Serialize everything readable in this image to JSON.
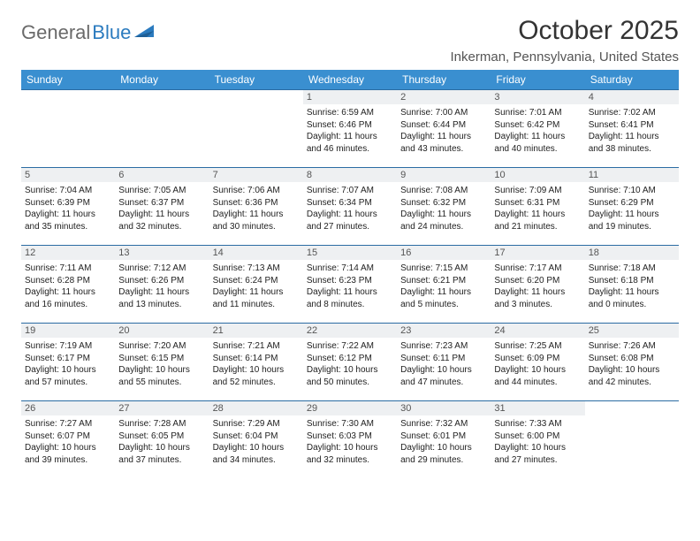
{
  "logo": {
    "text1": "General",
    "text2": "Blue",
    "color1": "#6a6a6a",
    "color2": "#2b7bbf"
  },
  "title": "October 2025",
  "location": "Inkerman, Pennsylvania, United States",
  "colors": {
    "header_bg": "#3a8fd0",
    "header_text": "#ffffff",
    "cell_border": "#2b6ca3",
    "daynum_bg": "#eef0f2",
    "daynum_text": "#555555",
    "body_text": "#222222",
    "page_bg": "#ffffff"
  },
  "fonts": {
    "title_size": 30,
    "location_size": 15,
    "dayhead_size": 12,
    "daynum_size": 11,
    "detail_size": 10
  },
  "day_headers": [
    "Sunday",
    "Monday",
    "Tuesday",
    "Wednesday",
    "Thursday",
    "Friday",
    "Saturday"
  ],
  "weeks": [
    [
      {
        "num": "",
        "sunrise": "",
        "sunset": "",
        "daylight": ""
      },
      {
        "num": "",
        "sunrise": "",
        "sunset": "",
        "daylight": ""
      },
      {
        "num": "",
        "sunrise": "",
        "sunset": "",
        "daylight": ""
      },
      {
        "num": "1",
        "sunrise": "Sunrise: 6:59 AM",
        "sunset": "Sunset: 6:46 PM",
        "daylight": "Daylight: 11 hours and 46 minutes."
      },
      {
        "num": "2",
        "sunrise": "Sunrise: 7:00 AM",
        "sunset": "Sunset: 6:44 PM",
        "daylight": "Daylight: 11 hours and 43 minutes."
      },
      {
        "num": "3",
        "sunrise": "Sunrise: 7:01 AM",
        "sunset": "Sunset: 6:42 PM",
        "daylight": "Daylight: 11 hours and 40 minutes."
      },
      {
        "num": "4",
        "sunrise": "Sunrise: 7:02 AM",
        "sunset": "Sunset: 6:41 PM",
        "daylight": "Daylight: 11 hours and 38 minutes."
      }
    ],
    [
      {
        "num": "5",
        "sunrise": "Sunrise: 7:04 AM",
        "sunset": "Sunset: 6:39 PM",
        "daylight": "Daylight: 11 hours and 35 minutes."
      },
      {
        "num": "6",
        "sunrise": "Sunrise: 7:05 AM",
        "sunset": "Sunset: 6:37 PM",
        "daylight": "Daylight: 11 hours and 32 minutes."
      },
      {
        "num": "7",
        "sunrise": "Sunrise: 7:06 AM",
        "sunset": "Sunset: 6:36 PM",
        "daylight": "Daylight: 11 hours and 30 minutes."
      },
      {
        "num": "8",
        "sunrise": "Sunrise: 7:07 AM",
        "sunset": "Sunset: 6:34 PM",
        "daylight": "Daylight: 11 hours and 27 minutes."
      },
      {
        "num": "9",
        "sunrise": "Sunrise: 7:08 AM",
        "sunset": "Sunset: 6:32 PM",
        "daylight": "Daylight: 11 hours and 24 minutes."
      },
      {
        "num": "10",
        "sunrise": "Sunrise: 7:09 AM",
        "sunset": "Sunset: 6:31 PM",
        "daylight": "Daylight: 11 hours and 21 minutes."
      },
      {
        "num": "11",
        "sunrise": "Sunrise: 7:10 AM",
        "sunset": "Sunset: 6:29 PM",
        "daylight": "Daylight: 11 hours and 19 minutes."
      }
    ],
    [
      {
        "num": "12",
        "sunrise": "Sunrise: 7:11 AM",
        "sunset": "Sunset: 6:28 PM",
        "daylight": "Daylight: 11 hours and 16 minutes."
      },
      {
        "num": "13",
        "sunrise": "Sunrise: 7:12 AM",
        "sunset": "Sunset: 6:26 PM",
        "daylight": "Daylight: 11 hours and 13 minutes."
      },
      {
        "num": "14",
        "sunrise": "Sunrise: 7:13 AM",
        "sunset": "Sunset: 6:24 PM",
        "daylight": "Daylight: 11 hours and 11 minutes."
      },
      {
        "num": "15",
        "sunrise": "Sunrise: 7:14 AM",
        "sunset": "Sunset: 6:23 PM",
        "daylight": "Daylight: 11 hours and 8 minutes."
      },
      {
        "num": "16",
        "sunrise": "Sunrise: 7:15 AM",
        "sunset": "Sunset: 6:21 PM",
        "daylight": "Daylight: 11 hours and 5 minutes."
      },
      {
        "num": "17",
        "sunrise": "Sunrise: 7:17 AM",
        "sunset": "Sunset: 6:20 PM",
        "daylight": "Daylight: 11 hours and 3 minutes."
      },
      {
        "num": "18",
        "sunrise": "Sunrise: 7:18 AM",
        "sunset": "Sunset: 6:18 PM",
        "daylight": "Daylight: 11 hours and 0 minutes."
      }
    ],
    [
      {
        "num": "19",
        "sunrise": "Sunrise: 7:19 AM",
        "sunset": "Sunset: 6:17 PM",
        "daylight": "Daylight: 10 hours and 57 minutes."
      },
      {
        "num": "20",
        "sunrise": "Sunrise: 7:20 AM",
        "sunset": "Sunset: 6:15 PM",
        "daylight": "Daylight: 10 hours and 55 minutes."
      },
      {
        "num": "21",
        "sunrise": "Sunrise: 7:21 AM",
        "sunset": "Sunset: 6:14 PM",
        "daylight": "Daylight: 10 hours and 52 minutes."
      },
      {
        "num": "22",
        "sunrise": "Sunrise: 7:22 AM",
        "sunset": "Sunset: 6:12 PM",
        "daylight": "Daylight: 10 hours and 50 minutes."
      },
      {
        "num": "23",
        "sunrise": "Sunrise: 7:23 AM",
        "sunset": "Sunset: 6:11 PM",
        "daylight": "Daylight: 10 hours and 47 minutes."
      },
      {
        "num": "24",
        "sunrise": "Sunrise: 7:25 AM",
        "sunset": "Sunset: 6:09 PM",
        "daylight": "Daylight: 10 hours and 44 minutes."
      },
      {
        "num": "25",
        "sunrise": "Sunrise: 7:26 AM",
        "sunset": "Sunset: 6:08 PM",
        "daylight": "Daylight: 10 hours and 42 minutes."
      }
    ],
    [
      {
        "num": "26",
        "sunrise": "Sunrise: 7:27 AM",
        "sunset": "Sunset: 6:07 PM",
        "daylight": "Daylight: 10 hours and 39 minutes."
      },
      {
        "num": "27",
        "sunrise": "Sunrise: 7:28 AM",
        "sunset": "Sunset: 6:05 PM",
        "daylight": "Daylight: 10 hours and 37 minutes."
      },
      {
        "num": "28",
        "sunrise": "Sunrise: 7:29 AM",
        "sunset": "Sunset: 6:04 PM",
        "daylight": "Daylight: 10 hours and 34 minutes."
      },
      {
        "num": "29",
        "sunrise": "Sunrise: 7:30 AM",
        "sunset": "Sunset: 6:03 PM",
        "daylight": "Daylight: 10 hours and 32 minutes."
      },
      {
        "num": "30",
        "sunrise": "Sunrise: 7:32 AM",
        "sunset": "Sunset: 6:01 PM",
        "daylight": "Daylight: 10 hours and 29 minutes."
      },
      {
        "num": "31",
        "sunrise": "Sunrise: 7:33 AM",
        "sunset": "Sunset: 6:00 PM",
        "daylight": "Daylight: 10 hours and 27 minutes."
      },
      {
        "num": "",
        "sunrise": "",
        "sunset": "",
        "daylight": ""
      }
    ]
  ]
}
